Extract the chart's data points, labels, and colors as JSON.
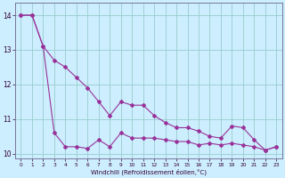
{
  "xlabel": "Windchill (Refroidissement éolien,°C)",
  "hours": [
    0,
    1,
    2,
    3,
    4,
    5,
    6,
    7,
    8,
    9,
    10,
    11,
    12,
    13,
    14,
    15,
    16,
    17,
    18,
    19,
    20,
    21,
    22,
    23
  ],
  "line1": [
    14.0,
    14.0,
    13.1,
    12.7,
    12.5,
    12.2,
    11.9,
    11.5,
    11.1,
    11.5,
    11.4,
    11.4,
    11.1,
    10.9,
    10.75,
    10.75,
    10.65,
    10.5,
    10.45,
    10.8,
    10.75,
    10.4,
    10.1,
    10.2
  ],
  "line2": [
    14.0,
    14.0,
    13.1,
    10.6,
    10.2,
    10.2,
    10.15,
    10.4,
    10.2,
    10.6,
    10.45,
    10.45,
    10.45,
    10.4,
    10.35,
    10.35,
    10.25,
    10.3,
    10.25,
    10.3,
    10.25,
    10.2,
    10.1,
    10.2
  ],
  "line_color": "#993399",
  "bg_color": "#cceeff",
  "grid_color": "#99cccc",
  "ylim": [
    9.85,
    14.35
  ],
  "yticks": [
    10,
    11,
    12,
    13,
    14
  ],
  "xticks": [
    0,
    1,
    2,
    3,
    4,
    5,
    6,
    7,
    8,
    9,
    10,
    11,
    12,
    13,
    14,
    15,
    16,
    17,
    18,
    19,
    20,
    21,
    22,
    23
  ]
}
